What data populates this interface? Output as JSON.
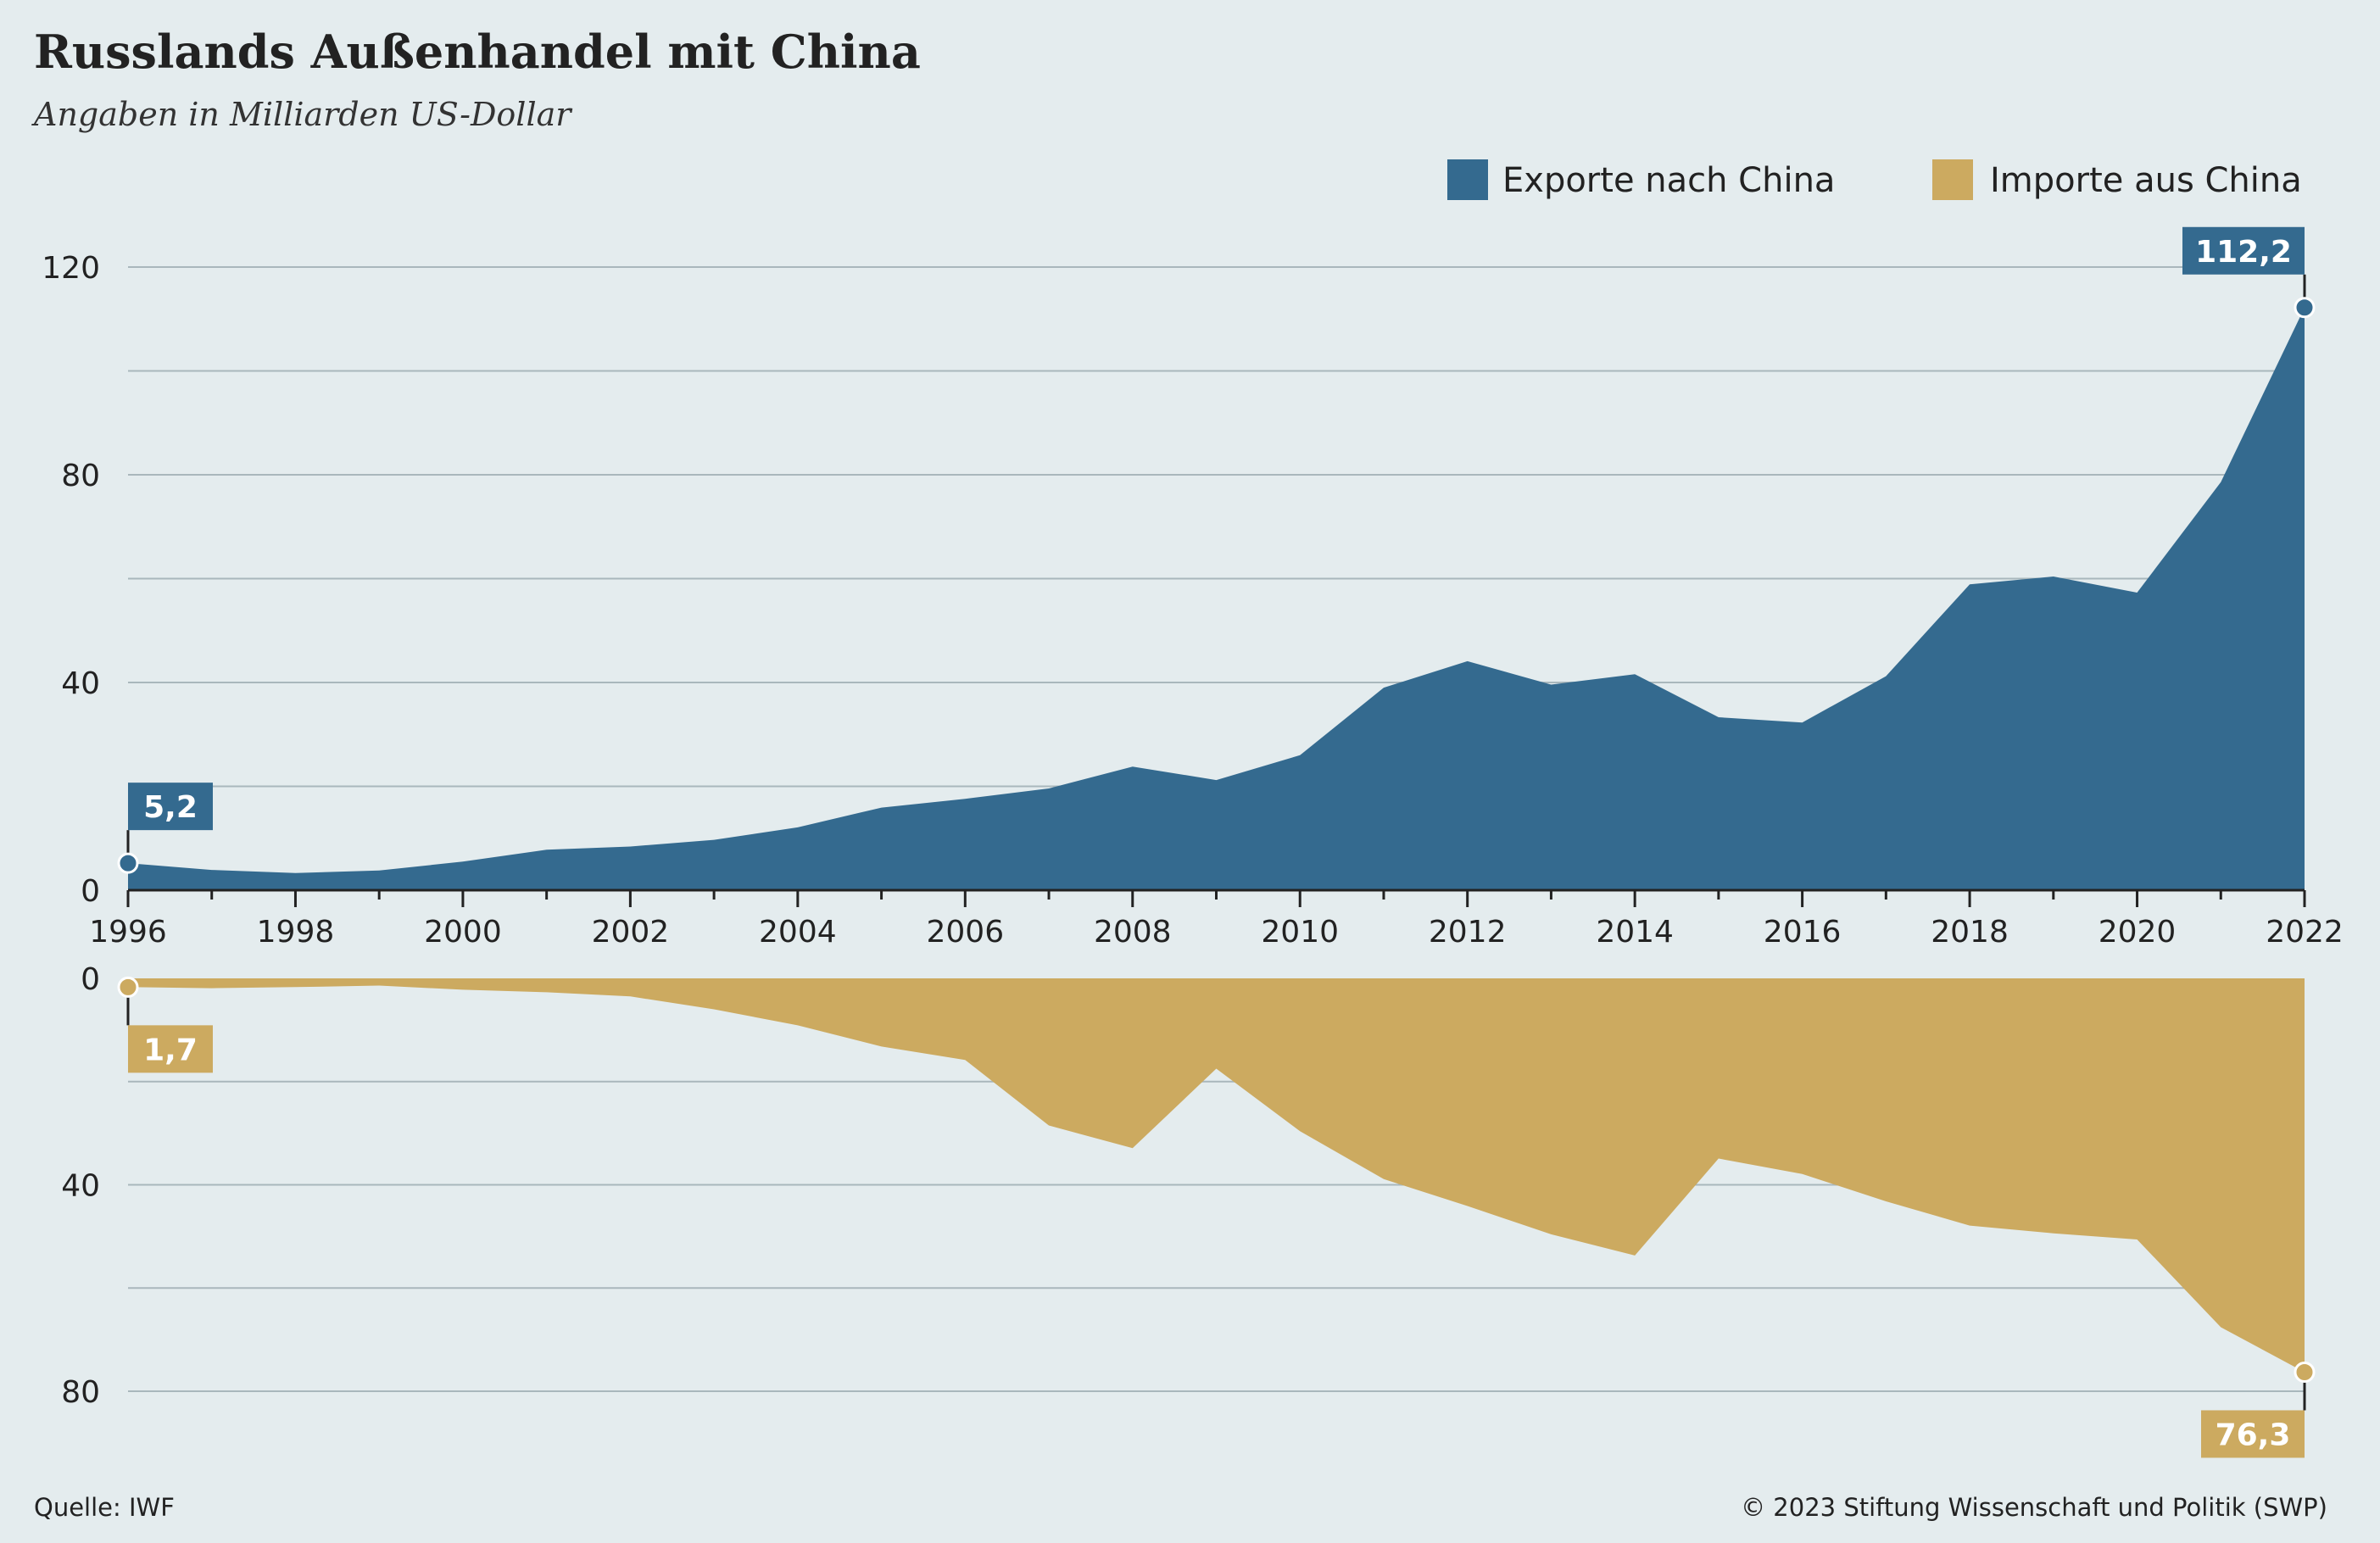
{
  "title": "Russlands Außenhandel mit China",
  "subtitle": "Angaben in Milliarden US-Dollar",
  "source": "Quelle: IWF",
  "copyright": "© 2023 Stiftung Wissenschaft und Politik (SWP)",
  "colors": {
    "exports": "#346a8f",
    "imports": "#ccaa60",
    "background": "#e4ecee"
  },
  "chart_data": [
    {
      "type": "area",
      "name": "exports-panel",
      "legend_position": "top-right",
      "ylim": [
        0,
        120
      ],
      "y_ticks": [
        0,
        40,
        80,
        120
      ],
      "x_tick_labels": [
        "1996",
        "1998",
        "2000",
        "2002",
        "2004",
        "2006",
        "2008",
        "2010",
        "2012",
        "2014",
        "2016",
        "2018",
        "2020",
        "2022"
      ],
      "grid": true,
      "series": [
        {
          "name": "Exporte nach China",
          "x": [
            1996,
            1997,
            1998,
            1999,
            2000,
            2001,
            2002,
            2003,
            2004,
            2005,
            2006,
            2007,
            2008,
            2009,
            2010,
            2011,
            2012,
            2013,
            2014,
            2015,
            2016,
            2017,
            2018,
            2019,
            2020,
            2021,
            2022
          ],
          "values": [
            5.2,
            3.9,
            3.3,
            3.8,
            5.5,
            7.8,
            8.4,
            9.7,
            12.1,
            15.9,
            17.6,
            19.6,
            23.8,
            21.2,
            26.0,
            39.0,
            44.1,
            39.6,
            41.6,
            33.3,
            32.3,
            41.2,
            58.9,
            60.4,
            57.3,
            78.6,
            112.2
          ]
        }
      ],
      "annotations": [
        {
          "x": 1996,
          "label": "5,2"
        },
        {
          "x": 2022,
          "label": "112,2"
        }
      ]
    },
    {
      "type": "area",
      "name": "imports-panel",
      "ylim": [
        0,
        80
      ],
      "y_ticks": [
        0,
        40,
        80
      ],
      "y_inverted": true,
      "grid": true,
      "series": [
        {
          "name": "Importe aus China",
          "x": [
            1996,
            1997,
            1998,
            1999,
            2000,
            2001,
            2002,
            2003,
            2004,
            2005,
            2006,
            2007,
            2008,
            2009,
            2010,
            2011,
            2012,
            2013,
            2014,
            2015,
            2016,
            2017,
            2018,
            2019,
            2020,
            2021,
            2022
          ],
          "values": [
            1.7,
            1.9,
            1.7,
            1.4,
            2.2,
            2.7,
            3.5,
            6.0,
            9.1,
            13.2,
            15.8,
            28.5,
            32.9,
            17.5,
            29.6,
            38.9,
            44.1,
            49.6,
            53.7,
            34.9,
            37.9,
            43.2,
            47.9,
            49.4,
            50.6,
            67.6,
            76.3
          ]
        }
      ],
      "annotations": [
        {
          "x": 1996,
          "label": "1,7"
        },
        {
          "x": 2022,
          "label": "76,3"
        }
      ]
    }
  ]
}
